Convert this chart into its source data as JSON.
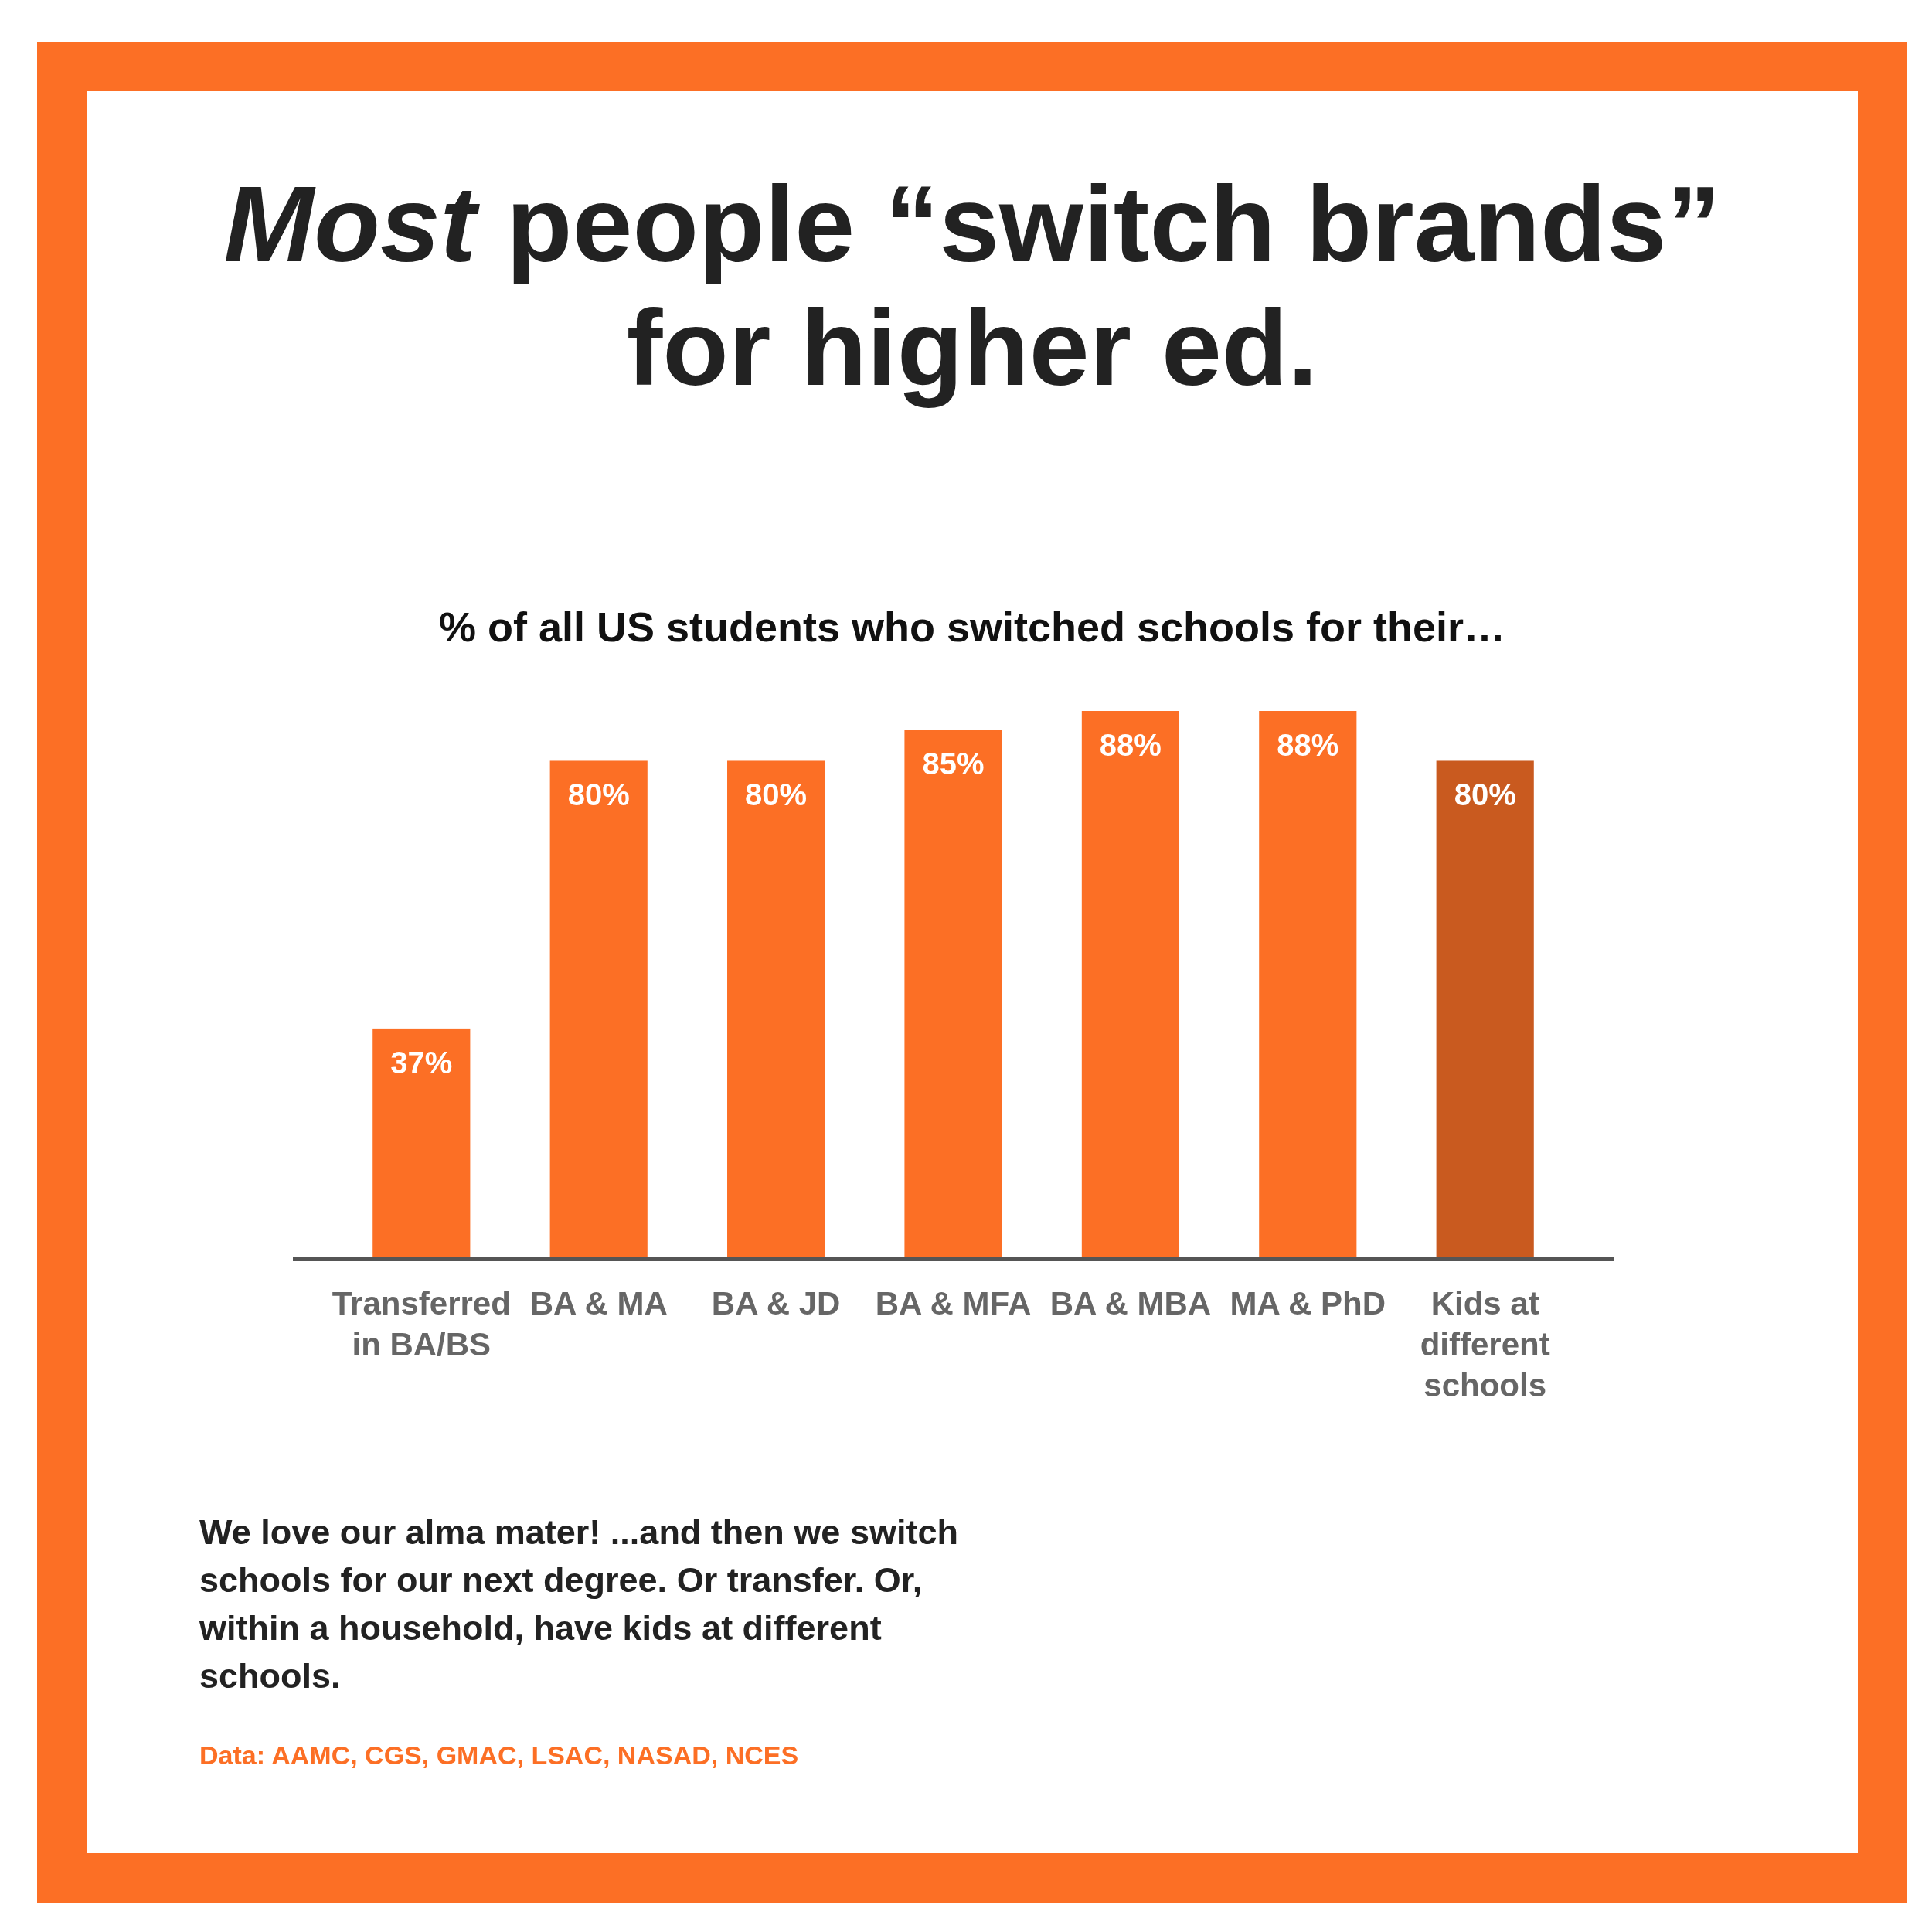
{
  "chart_data": {
    "type": "bar",
    "title": "Most people “switch brands” for higher ed.",
    "subtitle": "% of all US students who switched schools for their…",
    "categories": [
      "Transferred in BA/BS",
      "BA & MA",
      "BA & JD",
      "BA & MFA",
      "BA & MBA",
      "MA & PhD",
      "Kids at different schools"
    ],
    "values": [
      37,
      80,
      80,
      85,
      88,
      88,
      80
    ],
    "colors": [
      "#fc6f25",
      "#fc6f25",
      "#fc6f25",
      "#fc6f25",
      "#fc6f25",
      "#fc6f25",
      "#c95a1f"
    ],
    "value_labels": [
      "37%",
      "80%",
      "80%",
      "85%",
      "88%",
      "88%",
      "80%"
    ],
    "annotations": [
      "We love our alma mater! ...and then we switch schools for our next degree. Or  transfer. Or, within a household, have kids at different schools.",
      "Data: AAMC, CGS, GMAC, LSAC, NASAD, NCES"
    ]
  }
}
